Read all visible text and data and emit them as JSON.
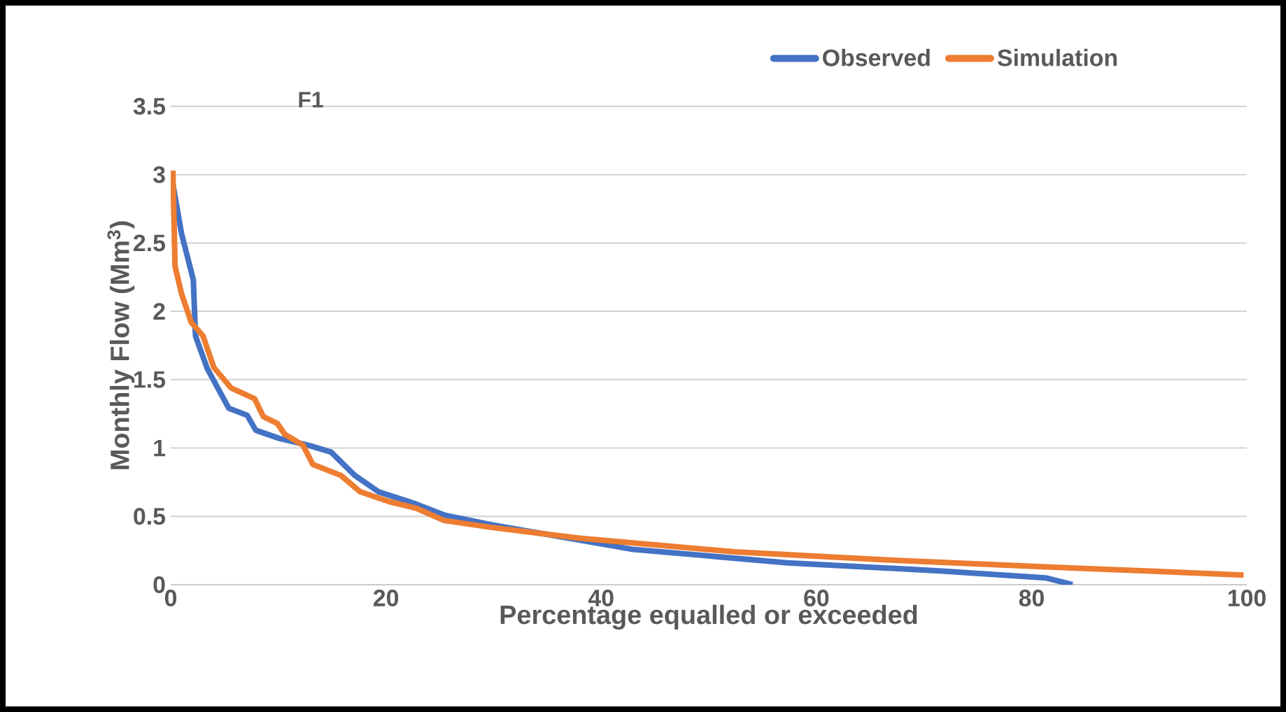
{
  "chart_data": {
    "type": "line",
    "title": "F1",
    "xlabel": "Percentage equalled or exceeded",
    "ylabel": "Monthly Flow (Mm$^{3}$)",
    "xlim": [
      0,
      100
    ],
    "xticks": [
      0,
      20,
      40,
      60,
      80,
      100
    ],
    "ylim": [
      0,
      3.5
    ],
    "yticks": [
      0,
      0.5,
      1,
      1.5,
      2,
      2.5,
      3,
      3.5
    ],
    "grid": "y",
    "legend": "top",
    "line_style": "solid",
    "marker": "none",
    "series": [
      {
        "name": "Observed",
        "color": "#4472c4",
        "x": [
          0.2,
          1.0,
          2.1,
          2.3,
          3.4,
          5.4,
          7.1,
          7.9,
          10.1,
          12.8,
          14.9,
          17.1,
          19.3,
          22.8,
          25.4,
          29.7,
          42.8,
          57.3,
          71.7,
          81.3,
          83.8
        ],
        "values": [
          2.93,
          2.57,
          2.23,
          1.82,
          1.58,
          1.29,
          1.24,
          1.13,
          1.07,
          1.02,
          0.97,
          0.8,
          0.68,
          0.59,
          0.51,
          0.44,
          0.26,
          0.16,
          0.1,
          0.05,
          0.0
        ]
      },
      {
        "name": "Simulation",
        "color": "#ed7d31",
        "x": [
          0.2,
          0.4,
          1.0,
          1.9,
          3.0,
          4.0,
          5.6,
          7.8,
          8.6,
          9.9,
          10.6,
          12.3,
          13.2,
          15.8,
          17.6,
          20.2,
          22.8,
          25.4,
          29.7,
          38,
          52.4,
          66.8,
          81.3,
          91,
          99.7
        ],
        "values": [
          3.03,
          2.33,
          2.13,
          1.92,
          1.82,
          1.59,
          1.44,
          1.36,
          1.23,
          1.18,
          1.1,
          1.02,
          0.88,
          0.8,
          0.68,
          0.61,
          0.56,
          0.47,
          0.42,
          0.34,
          0.24,
          0.18,
          0.13,
          0.1,
          0.07
        ]
      }
    ]
  }
}
